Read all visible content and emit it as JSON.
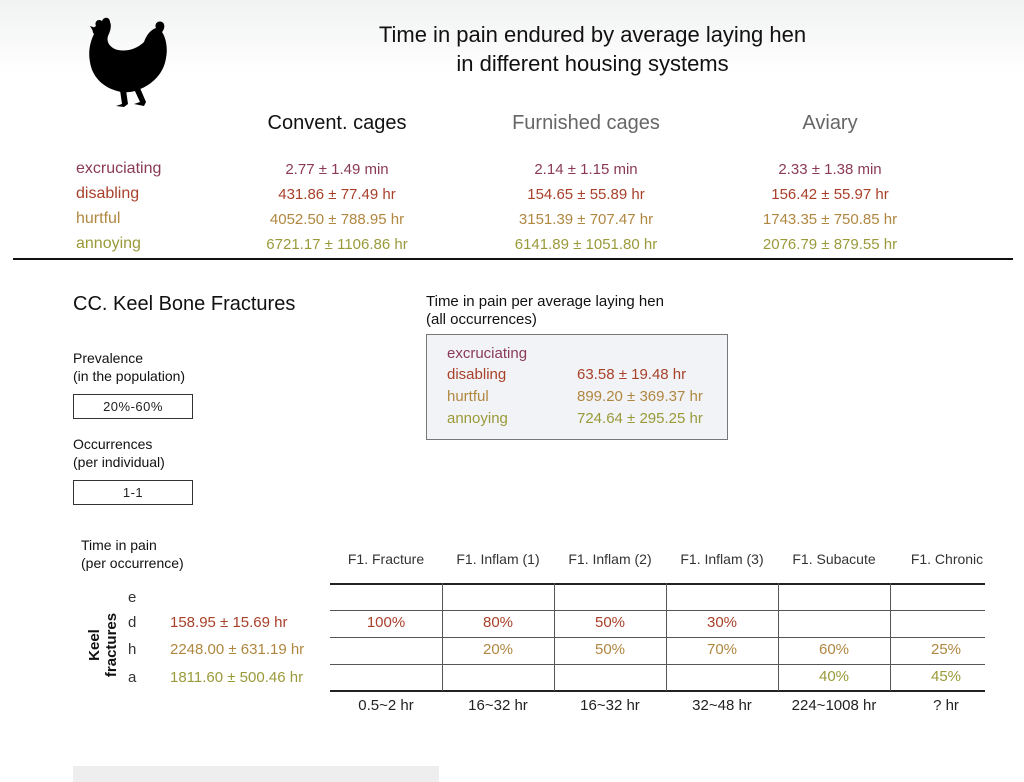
{
  "header": {
    "title_line1": "Time in pain endured by average laying hen",
    "title_line2": "in different housing systems",
    "icon": "hen-silhouette"
  },
  "systems": [
    "Convent. cages",
    "Furnished cages",
    "Aviary"
  ],
  "pain_levels": [
    "excruciating",
    "disabling",
    "hurtful",
    "annoying"
  ],
  "housing_table": {
    "excruciating": [
      "2.77 ± 1.49 min",
      "2.14 ± 1.15 min",
      "2.33 ± 1.38 min"
    ],
    "disabling": [
      "431.86 ± 77.49 hr",
      "154.65 ± 55.89 hr",
      "156.42 ± 55.97 hr"
    ],
    "hurtful": [
      "4052.50 ± 788.95 hr",
      "3151.39 ± 707.47 hr",
      "1743.35 ± 750.85 hr"
    ],
    "annoying": [
      "6721.17 ± 1106.86 hr",
      "6141.89 ± 1051.80 hr",
      "2076.79 ± 879.55 hr"
    ]
  },
  "section": {
    "title": "CC. Keel Bone Fractures",
    "prevalence_label1": "Prevalence",
    "prevalence_label2": "(in the population)",
    "prevalence_value": "20%-60%",
    "occurrences_label1": "Occurrences",
    "occurrences_label2": "(per individual)",
    "occurrences_value": "1-1",
    "pain_per_hen_title1": "Time in pain per average laying hen",
    "pain_per_hen_title2": "(all occurrences)",
    "pain_per_hen": {
      "excruciating": "",
      "disabling": "63.58 ± 19.48 hr",
      "hurtful": "899.20 ± 369.37 hr",
      "annoying": "724.64 ± 295.25 hr"
    },
    "per_occurrence_label1": "Time in pain",
    "per_occurrence_label2": "(per occurrence)",
    "vertical_label": "Keel fractures",
    "letters": [
      "e",
      "d",
      "h",
      "a"
    ],
    "per_occurrence_values": [
      "",
      "158.95 ± 15.69 hr",
      "2248.00 ± 631.19 hr",
      "1811.60 ± 500.46 hr"
    ],
    "phases": [
      "F1. Fracture",
      "F1. Inflam (1)",
      "F1. Inflam (2)",
      "F1. Inflam (3)",
      "F1. Subacute",
      "F1. Chronic"
    ],
    "grid": {
      "e": [
        "",
        "",
        "",
        "",
        "",
        ""
      ],
      "d": [
        "100%",
        "80%",
        "50%",
        "30%",
        "",
        ""
      ],
      "h": [
        "",
        "20%",
        "50%",
        "70%",
        "60%",
        "25%"
      ],
      "a": [
        "",
        "",
        "",
        "",
        "40%",
        "45%"
      ]
    },
    "durations": [
      "0.5~2 hr",
      "16~32 hr",
      "16~32 hr",
      "32~48 hr",
      "224~1008 hr",
      "? hr"
    ]
  },
  "colors": {
    "excruciating": "#8a3a55",
    "disabling": "#a8402a",
    "hurtful": "#b08740",
    "annoying": "#9a9a3a"
  }
}
